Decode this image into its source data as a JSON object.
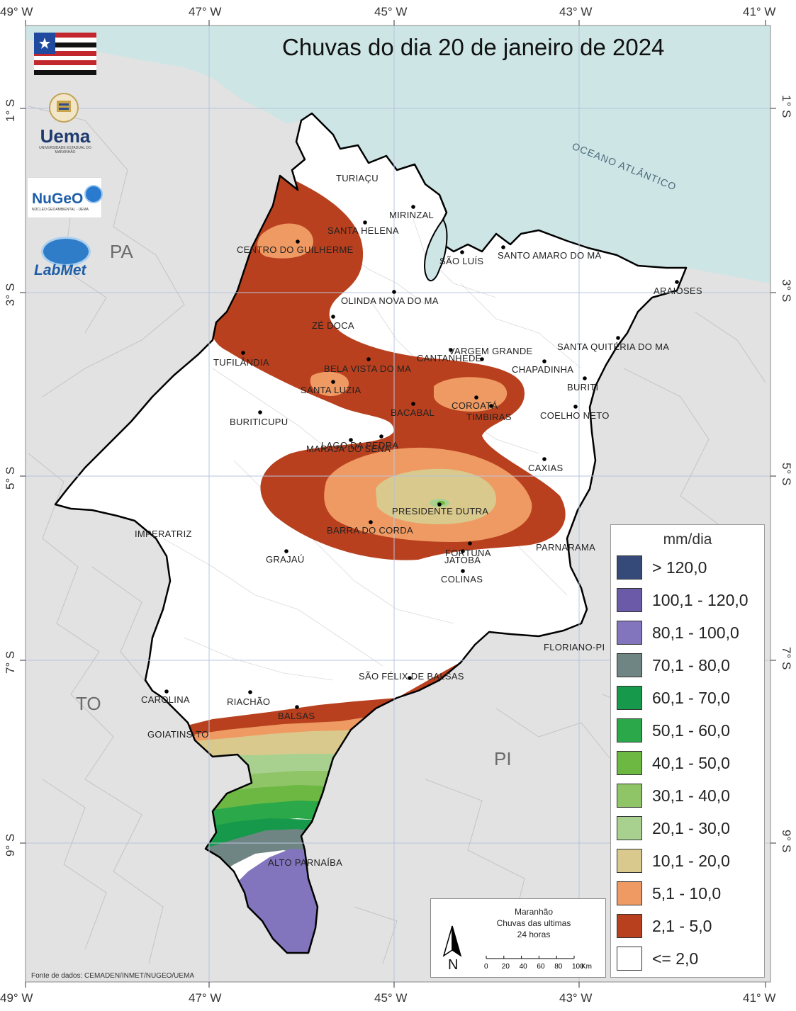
{
  "title": "Chuvas do dia 20 de janeiro de 2024",
  "coords": {
    "top_lon": [
      "49° W",
      "47° W",
      "45° W",
      "43° W",
      "41° W"
    ],
    "bottom_lon": [
      "49° W",
      "47° W",
      "45° W",
      "43° W",
      "41° W"
    ],
    "left_lat": [
      "1° S",
      "3° S",
      "5° S",
      "7° S",
      "9° S"
    ],
    "right_lat": [
      "1° S",
      "3° S",
      "5° S",
      "7° S",
      "9° S"
    ]
  },
  "region_labels": {
    "pa": "PA",
    "to": "TO",
    "pi": "PI",
    "ocean": "OCEANO ATLÂNTICO"
  },
  "cities": [
    "TURIAÇU",
    "MIRINZAL",
    "SANTA HELENA",
    "CENTRO DO GUILHERME",
    "SÃO LUÍS",
    "SANTO AMARO DO MA",
    "ARAIOSES",
    "OLINDA NOVA DO MA",
    "ZÉ DOCA",
    "VARGEM GRANDE",
    "SANTA QUITÉRIA DO MA",
    "TUFILÂNDIA",
    "BELA VISTA DO MA",
    "CANTANHEDE",
    "CHAPADINHA",
    "SANTA LUZIA",
    "BURITI",
    "COROATÁ",
    "BACABAL",
    "TIMBIRAS",
    "BURITICUPU",
    "COELHO NETO",
    "LAGO DA PEDRA",
    "MARAJÁ DO SENA",
    "CAXIAS",
    "PRESIDENTE DUTRA",
    "BARRA DO CORDA",
    "IMPERATRIZ",
    "GRAJAÚ",
    "FORTUNA",
    "JATOBÁ",
    "PARNARAMA",
    "COLINAS",
    "FLORIANO-PI",
    "SÃO FÉLIX DE BALSAS",
    "CAROLINA",
    "RIACHÃO",
    "BALSAS",
    "GOIATINS-TO",
    "ALTO PARNAÍBA"
  ],
  "logos": {
    "uema": "Uema",
    "uema_sub": "UNIVERSIDADE ESTADUAL DO MARANHÃO",
    "nugeo": "NuGeO",
    "nugeo_sub": "NÚCLEO GEOAMBIENTAL - UEMA",
    "labmet": "LabMet"
  },
  "legend": {
    "title": "mm/dia",
    "classes": [
      {
        "label": "> 120,0",
        "color": "#364a7a"
      },
      {
        "label": "100,1 - 120,0",
        "color": "#6b5aa8"
      },
      {
        "label": "80,1 - 100,0",
        "color": "#8375bd"
      },
      {
        "label": "70,1 - 80,0",
        "color": "#6f8583"
      },
      {
        "label": "60,1 - 70,0",
        "color": "#16994a"
      },
      {
        "label": "50,1 - 60,0",
        "color": "#2aa84a"
      },
      {
        "label": "40,1 - 50,0",
        "color": "#6cb843"
      },
      {
        "label": "30,1 - 40,0",
        "color": "#8fc566"
      },
      {
        "label": "20,1 - 30,0",
        "color": "#a8d190"
      },
      {
        "label": "10,1 - 20,0",
        "color": "#d9c98c"
      },
      {
        "label": "5,1 - 10,0",
        "color": "#ef9a63"
      },
      {
        "label": "2,1 - 5,0",
        "color": "#b8401e"
      },
      {
        "label": "<= 2,0",
        "color": "#ffffff"
      }
    ]
  },
  "scale_box": {
    "line1": "Maranhão",
    "line2": "Chuvas das ultimas",
    "line3": "24 horas",
    "north": "N",
    "ticks": [
      "0",
      "20",
      "40",
      "60",
      "80",
      "100"
    ],
    "unit": "Km"
  },
  "source": "Fonte de dados: CEMADEN/INMET/NUGEO/UEMA",
  "colors": {
    "ocean": "#cde5e5",
    "land_outside": "#e2e2e2",
    "state_fill": "#ffffff",
    "grid": "#b8c4dc"
  }
}
